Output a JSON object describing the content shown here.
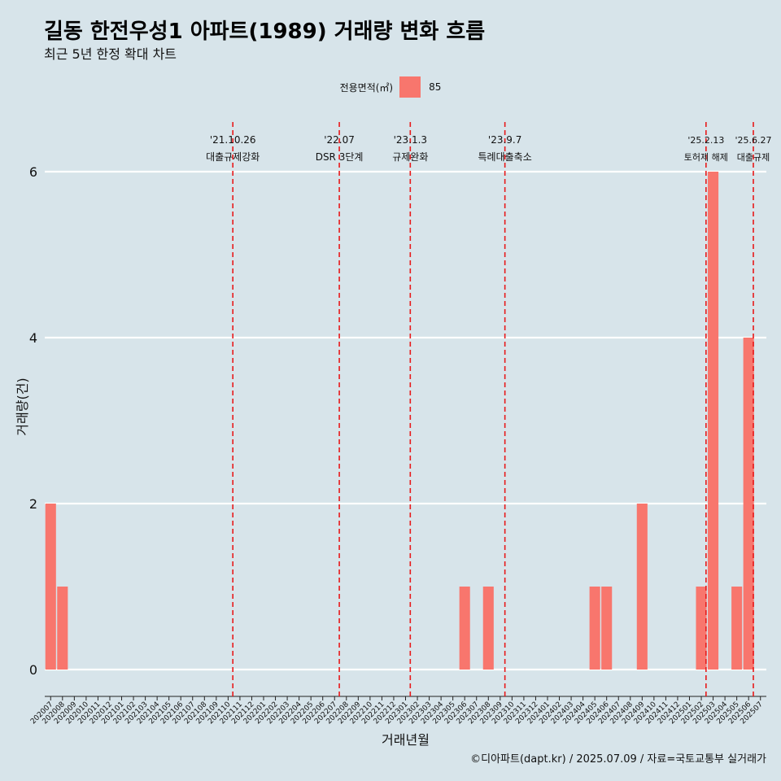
{
  "title": "길동 한전우성1 아파트(1989) 거래량 변화 흐름",
  "subtitle": "최근 5년 한정 확대 차트",
  "legend": {
    "title": "전용면적(㎡)",
    "entries": [
      {
        "label": "85",
        "color": "#f8766d"
      }
    ]
  },
  "caption": "©디아파트(dapt.kr) / 2025.07.09 / 자료=국토교통부 실거래가",
  "colors": {
    "background": "#d7e4ea",
    "bar": "#f8766d",
    "grid": "#ffffff",
    "event_line": "#e8191a"
  },
  "chart_data": {
    "type": "bar",
    "xlabel": "거래년월",
    "ylabel": "거래량(건)",
    "ylim": [
      0,
      6
    ],
    "y_ticks": [
      0,
      2,
      4,
      6
    ],
    "grid": "horizontal",
    "legend_position": "top",
    "categories": [
      "202007",
      "202008",
      "202009",
      "202010",
      "202011",
      "202012",
      "202101",
      "202102",
      "202103",
      "202104",
      "202105",
      "202106",
      "202107",
      "202108",
      "202109",
      "202110",
      "202111",
      "202112",
      "202201",
      "202202",
      "202203",
      "202204",
      "202205",
      "202206",
      "202207",
      "202208",
      "202209",
      "202210",
      "202211",
      "202212",
      "202301",
      "202302",
      "202303",
      "202304",
      "202305",
      "202306",
      "202307",
      "202308",
      "202309",
      "202310",
      "202311",
      "202312",
      "202401",
      "202402",
      "202403",
      "202404",
      "202405",
      "202406",
      "202407",
      "202408",
      "202409",
      "202410",
      "202411",
      "202412",
      "202501",
      "202502",
      "202503",
      "202504",
      "202505",
      "202506",
      "202507"
    ],
    "series": [
      {
        "name": "85",
        "values": [
          2,
          1,
          0,
          0,
          0,
          0,
          0,
          0,
          0,
          0,
          0,
          0,
          0,
          0,
          0,
          0,
          0,
          0,
          0,
          0,
          0,
          0,
          0,
          0,
          0,
          0,
          0,
          0,
          0,
          0,
          0,
          0,
          0,
          0,
          0,
          1,
          0,
          1,
          0,
          0,
          0,
          0,
          0,
          0,
          0,
          0,
          1,
          1,
          0,
          0,
          2,
          0,
          0,
          0,
          0,
          1,
          6,
          0,
          1,
          4,
          0
        ]
      }
    ],
    "annotations": [
      {
        "x": 15.4,
        "date": "'21.10.26",
        "label": "대출규제강화"
      },
      {
        "x": 24.4,
        "date": "'22.07",
        "label": "DSR 3단계"
      },
      {
        "x": 30.4,
        "date": "'23.1.3",
        "label": "규제완화"
      },
      {
        "x": 38.4,
        "date": "'23.9.7",
        "label": "특례대출축소"
      },
      {
        "x": 55.4,
        "date": "'25.2.13",
        "label": "토허제 해제"
      },
      {
        "x": 59.4,
        "date": "'25.6.27",
        "label": "대출규제"
      }
    ]
  }
}
